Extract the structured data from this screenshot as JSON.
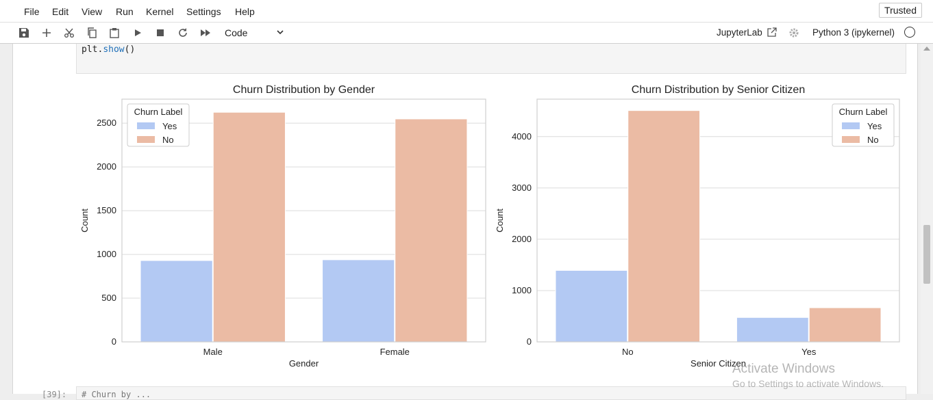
{
  "menu": [
    "File",
    "Edit",
    "View",
    "Run",
    "Kernel",
    "Settings",
    "Help"
  ],
  "trusted_label": "Trusted",
  "toolbar": {
    "cell_type": "Code",
    "jupyterlab_label": "JupyterLab",
    "kernel_label": "Python 3 (ipykernel)",
    "icons": [
      "save-icon",
      "add-cell-icon",
      "cut-icon",
      "copy-icon",
      "paste-icon",
      "run-icon",
      "stop-icon",
      "restart-icon",
      "run-all-icon"
    ]
  },
  "cell": {
    "code_obj": "plt.",
    "code_fn": "show",
    "code_rest": "()"
  },
  "next_cell": {
    "prompt": "[39]:",
    "code": "# Churn by ..."
  },
  "colors": {
    "yes": "#b3c9f3",
    "no": "#ebbba4",
    "grid": "#dcdcdc",
    "axes_border": "#cfcfcf"
  },
  "chart_data": [
    {
      "type": "bar",
      "title": "Churn Distribution by Gender",
      "xlabel": "Gender",
      "ylabel": "Count",
      "categories": [
        "Male",
        "Female"
      ],
      "series": [
        {
          "name": "Yes",
          "values": [
            930,
            939
          ]
        },
        {
          "name": "No",
          "values": [
            2625,
            2549
          ]
        }
      ],
      "ylim": [
        0,
        2775
      ],
      "yticks": [
        0,
        500,
        1000,
        1500,
        2000,
        2500
      ],
      "grid": true,
      "legend": {
        "title": "Churn Label",
        "position": "top-left"
      }
    },
    {
      "type": "bar",
      "title": "Churn Distribution by Senior Citizen",
      "xlabel": "Senior Citizen",
      "ylabel": "Count",
      "categories": [
        "No",
        "Yes"
      ],
      "series": [
        {
          "name": "Yes",
          "values": [
            1393,
            476
          ]
        },
        {
          "name": "No",
          "values": [
            4508,
            666
          ]
        }
      ],
      "ylim": [
        0,
        4730
      ],
      "yticks": [
        0,
        1000,
        2000,
        3000,
        4000
      ],
      "grid": true,
      "legend": {
        "title": "Churn Label",
        "position": "top-right"
      }
    }
  ],
  "watermark": {
    "line1": "Activate Windows",
    "line2": "Go to Settings to activate Windows."
  }
}
